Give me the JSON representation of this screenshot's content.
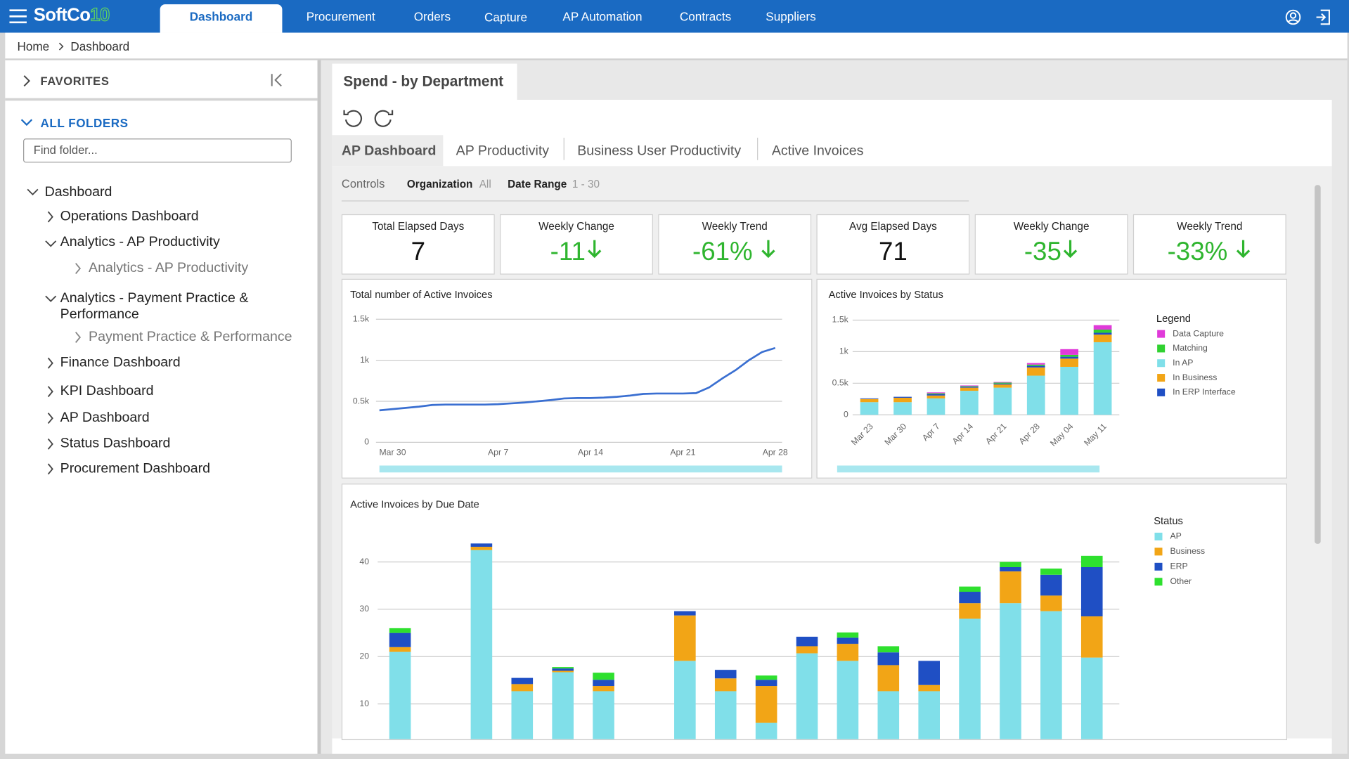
{
  "nav": {
    "logo": {
      "name": "SoftCo",
      "version": "10"
    },
    "active": "Dashboard",
    "items": [
      "Procurement",
      "Orders",
      "Capture",
      "AP Automation",
      "Contracts",
      "Suppliers"
    ]
  },
  "breadcrumb": [
    "Home",
    "Dashboard"
  ],
  "sidebar": {
    "favorites": "FAVORITES",
    "all_folders": "ALL FOLDERS",
    "search_placeholder": "Find folder...",
    "tree": [
      "Dashboard",
      "Operations Dashboard",
      "Analytics - AP Productivity",
      "Analytics - AP Productivity",
      "Analytics - Payment Practice & Performance",
      "Payment Practice & Performance",
      "Finance Dashboard",
      "KPI Dashboard",
      "AP Dashboard",
      "Status Dashboard",
      "Procurement Dashboard"
    ]
  },
  "panel": {
    "title": "Spend - by Department",
    "tabs": [
      "AP Dashboard",
      "AP Productivity",
      "Business User Productivity",
      "Active Invoices"
    ],
    "controls": {
      "label": "Controls",
      "filters": [
        {
          "name": "Organization",
          "value": "All"
        },
        {
          "name": "Date Range",
          "value": "1 - 30"
        }
      ]
    }
  },
  "kpis": [
    {
      "label": "Total Elapsed Days",
      "value": "7"
    },
    {
      "label": "Weekly Change",
      "value": "-11"
    },
    {
      "label": "Weekly Trend",
      "value": "-61%"
    },
    {
      "label": "Avg Elapsed Days",
      "value": "71"
    },
    {
      "label": "Weekly Change",
      "value": "-35"
    },
    {
      "label": "Weekly Trend",
      "value": "-33%"
    }
  ],
  "charts": [
    {
      "type": "line",
      "title": "Total number of Active Invoices",
      "color": "#3a6fd1",
      "categories": [
        null,
        "Mar 30",
        null,
        null,
        null,
        null,
        null,
        null,
        null,
        "Apr 7",
        null,
        null,
        null,
        null,
        null,
        null,
        "Apr 14",
        null,
        null,
        null,
        null,
        null,
        null,
        "Apr 21",
        null,
        null,
        null,
        null,
        null,
        null,
        "Apr 28"
      ],
      "values": [
        390,
        405,
        420,
        435,
        455,
        460,
        460,
        460,
        460,
        465,
        475,
        485,
        500,
        515,
        535,
        540,
        540,
        545,
        555,
        570,
        590,
        595,
        595,
        595,
        600,
        670,
        780,
        880,
        1000,
        1100,
        1150
      ],
      "ylim": [
        0,
        1500
      ],
      "yticks": [
        0,
        {
          "value": 500,
          "label": "0.5k"
        },
        {
          "value": 1000,
          "label": "1k"
        },
        {
          "value": 1500,
          "label": "1.5k"
        }
      ],
      "grid": true
    },
    {
      "type": "bar",
      "stacked": true,
      "title": "Active Invoices by Status",
      "legend_title": "Legend",
      "categories": [
        "Mar 23",
        "Mar 30",
        "Apr 7",
        "Apr 14",
        "Apr 21",
        "Apr 28",
        "May 04",
        "May 11"
      ],
      "series": [
        {
          "name": "Data Capture",
          "color": "#e03ad9",
          "values": [
            null,
            null,
            15,
            10,
            10,
            25,
            90,
            70
          ]
        },
        {
          "name": "Matching",
          "color": "#30d130",
          "values": [
            null,
            null,
            15,
            10,
            15,
            20,
            30,
            50
          ]
        },
        {
          "name": "In AP",
          "color": "#80dfe9",
          "values": [
            200,
            200,
            260,
            380,
            430,
            620,
            760,
            1150
          ]
        },
        {
          "name": "In Business",
          "color": "#f2a516",
          "values": [
            50,
            70,
            45,
            50,
            50,
            130,
            130,
            120
          ]
        },
        {
          "name": "In ERP Interface",
          "color": "#1f4fc4",
          "values": [
            10,
            15,
            20,
            15,
            15,
            25,
            30,
            30
          ]
        }
      ],
      "ylim": [
        0,
        1500
      ],
      "yticks": [
        0,
        {
          "value": 500,
          "label": "0.5k"
        },
        {
          "value": 1000,
          "label": "1k"
        },
        {
          "value": 1500,
          "label": "1.5k"
        }
      ],
      "grid": true
    },
    {
      "type": "bar",
      "stacked": true,
      "title": "Active Invoices by Due Date",
      "legend_title": "Status",
      "categories": [
        null,
        null,
        null,
        null,
        null,
        null,
        null,
        null,
        null,
        null,
        null,
        null,
        null,
        null,
        null,
        null,
        null,
        null
      ],
      "series": [
        {
          "name": "AP",
          "color": "#80dfe9",
          "values": [
            21,
            null,
            42.5,
            12.7,
            16.7,
            12.7,
            null,
            19.1,
            12.7,
            6,
            20.7,
            19.1,
            12.7,
            12.7,
            28,
            31.3,
            29.6,
            19.8
          ]
        },
        {
          "name": "Business",
          "color": "#f2a516",
          "values": [
            1,
            null,
            0.7,
            1.5,
            0.3,
            1.1,
            null,
            9.6,
            2.7,
            7.8,
            1.5,
            3.6,
            5.5,
            1.3,
            3.3,
            6.7,
            3.3,
            8.7
          ]
        },
        {
          "name": "ERP",
          "color": "#1f4fc4",
          "values": [
            3,
            null,
            0.7,
            1.3,
            0.5,
            1.3,
            null,
            0.9,
            1.8,
            1.3,
            2,
            1.3,
            2.7,
            5.1,
            2.4,
            0.9,
            4.4,
            10.4
          ]
        },
        {
          "name": "Other",
          "color": "#2ee02e",
          "values": [
            1,
            null,
            null,
            null,
            0.3,
            1.5,
            null,
            null,
            null,
            0.9,
            null,
            1.1,
            1.3,
            null,
            1.1,
            1.1,
            1.3,
            2.4
          ]
        }
      ],
      "ylim": [
        0,
        45
      ],
      "yticks": [
        10,
        20,
        30,
        40
      ],
      "grid": true
    }
  ]
}
